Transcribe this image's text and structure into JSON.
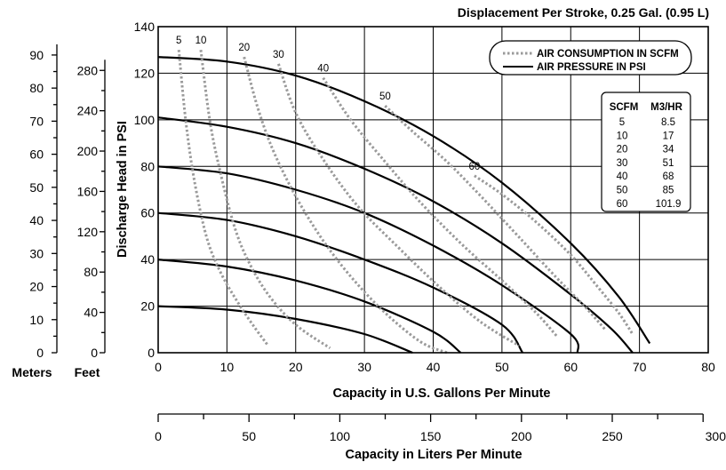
{
  "chart_data": {
    "type": "line",
    "title": "Displacement Per Stroke, 0.25 Gal. (0.95 L)",
    "xlabel": "Capacity in U.S. Gallons Per Minute",
    "ylabel": "Discharge Head in PSI",
    "xlim": [
      0,
      80
    ],
    "ylim": [
      0,
      140
    ],
    "x_ticks": [
      "0",
      "10",
      "20",
      "30",
      "40",
      "50",
      "60",
      "70",
      "80"
    ],
    "y_ticks": [
      "0",
      "20",
      "40",
      "60",
      "80",
      "100",
      "120",
      "140"
    ],
    "grid": true,
    "secondary_axes": {
      "meters": {
        "label": "Meters",
        "ticks": [
          "0",
          "10",
          "20",
          "30",
          "40",
          "50",
          "60",
          "70",
          "80",
          "90"
        ]
      },
      "feet": {
        "label": "Feet",
        "ticks": [
          "0",
          "40",
          "80",
          "120",
          "160",
          "200",
          "240",
          "280"
        ]
      },
      "liters": {
        "label": "Capacity in Liters Per Minute",
        "ticks": [
          "0",
          "50",
          "100",
          "150",
          "200",
          "250",
          "300"
        ]
      }
    },
    "legend": {
      "placement": "top-right",
      "entries": [
        {
          "label": "AIR CONSUMPTION IN SCFM",
          "style": "dotted"
        },
        {
          "label": "AIR PRESSURE IN PSI",
          "style": "solid"
        }
      ]
    },
    "conversion_table": {
      "headers": [
        "SCFM",
        "M3/HR"
      ],
      "rows": [
        [
          "5",
          "8.5"
        ],
        [
          "10",
          "17"
        ],
        [
          "20",
          "34"
        ],
        [
          "30",
          "51"
        ],
        [
          "40",
          "68"
        ],
        [
          "50",
          "85"
        ],
        [
          "60",
          "101.9"
        ]
      ]
    },
    "pressure_series": [
      {
        "points": [
          [
            0,
            127
          ],
          [
            10,
            125
          ],
          [
            20,
            119
          ],
          [
            30,
            108
          ],
          [
            40,
            93
          ],
          [
            50,
            73
          ],
          [
            60,
            47
          ],
          [
            67,
            24
          ],
          [
            71.5,
            4
          ]
        ]
      },
      {
        "points": [
          [
            0,
            101
          ],
          [
            10,
            97
          ],
          [
            20,
            90
          ],
          [
            30,
            79
          ],
          [
            40,
            65
          ],
          [
            50,
            47
          ],
          [
            60,
            25
          ],
          [
            66,
            10
          ],
          [
            69,
            0
          ]
        ]
      },
      {
        "points": [
          [
            0,
            80
          ],
          [
            10,
            77
          ],
          [
            20,
            70
          ],
          [
            30,
            60
          ],
          [
            40,
            46
          ],
          [
            50,
            29
          ],
          [
            60,
            8
          ],
          [
            61,
            0
          ]
        ]
      },
      {
        "points": [
          [
            0,
            60
          ],
          [
            10,
            57
          ],
          [
            20,
            50
          ],
          [
            30,
            40
          ],
          [
            40,
            28
          ],
          [
            50,
            12
          ],
          [
            53,
            0
          ]
        ]
      },
      {
        "points": [
          [
            0,
            40
          ],
          [
            10,
            37
          ],
          [
            20,
            31
          ],
          [
            30,
            22
          ],
          [
            40,
            9
          ],
          [
            44,
            0
          ]
        ]
      },
      {
        "points": [
          [
            0,
            20
          ],
          [
            10,
            18.5
          ],
          [
            20,
            14.5
          ],
          [
            30,
            8
          ],
          [
            37,
            0
          ]
        ]
      }
    ],
    "scfm_series": [
      {
        "label": "5",
        "points": [
          [
            3,
            130
          ],
          [
            4,
            100
          ],
          [
            5.2,
            75
          ],
          [
            7,
            50
          ],
          [
            9,
            35
          ],
          [
            11.5,
            22
          ],
          [
            14,
            11
          ],
          [
            16,
            3
          ]
        ]
      },
      {
        "label": "10",
        "points": [
          [
            6.2,
            130
          ],
          [
            7.5,
            100
          ],
          [
            9,
            78
          ],
          [
            11,
            55
          ],
          [
            13,
            40
          ],
          [
            16,
            25
          ],
          [
            20,
            12
          ],
          [
            25,
            2
          ]
        ]
      },
      {
        "label": "20",
        "points": [
          [
            12.5,
            127
          ],
          [
            14.5,
            105
          ],
          [
            17,
            85
          ],
          [
            21,
            62
          ],
          [
            26,
            40
          ],
          [
            32,
            20
          ],
          [
            38,
            5
          ],
          [
            42,
            0
          ]
        ]
      },
      {
        "label": "30",
        "points": [
          [
            17.5,
            124
          ],
          [
            20,
            103
          ],
          [
            24,
            83
          ],
          [
            29,
            63
          ],
          [
            35,
            45
          ],
          [
            41,
            28
          ],
          [
            47,
            13
          ],
          [
            52.5,
            3
          ]
        ]
      },
      {
        "label": "40",
        "points": [
          [
            24,
            118
          ],
          [
            28,
            100
          ],
          [
            33,
            82
          ],
          [
            38,
            65
          ],
          [
            44,
            47
          ],
          [
            50,
            31
          ],
          [
            55,
            17
          ],
          [
            58,
            7
          ]
        ]
      },
      {
        "label": "50",
        "points": [
          [
            33,
            106
          ],
          [
            37,
            95
          ],
          [
            42,
            82
          ],
          [
            47,
            67
          ],
          [
            53,
            48
          ],
          [
            58,
            32
          ],
          [
            62,
            20
          ],
          [
            65,
            10
          ]
        ]
      },
      {
        "label": "60",
        "points": [
          [
            46,
            76
          ],
          [
            50,
            68
          ],
          [
            55,
            56
          ],
          [
            60,
            42
          ],
          [
            64,
            28
          ],
          [
            67,
            17
          ],
          [
            69,
            8
          ]
        ]
      }
    ]
  }
}
